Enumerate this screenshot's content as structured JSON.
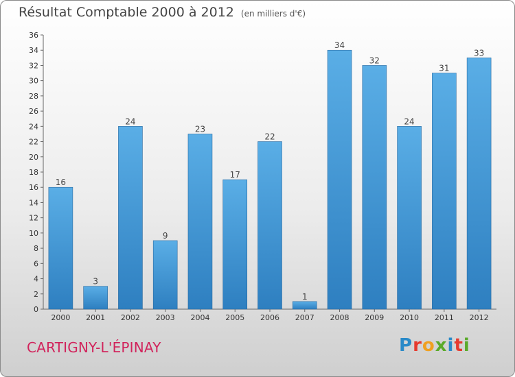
{
  "header": {
    "title": "Résultat Comptable 2000 à 2012",
    "subtitle": "(en milliers d'€)"
  },
  "footer": {
    "commune": "CARTIGNY-L'ÉPINAY",
    "logo_text": "Proxiti"
  },
  "colors": {
    "bar_light": "#5aaee6",
    "bar_dark": "#2e7fc0",
    "commune_text": "#d1245c",
    "logo_letters": [
      "#2a8ac8",
      "#e63a2e",
      "#f0a020",
      "#5aaa2a",
      "#2a8ac8",
      "#e63a2e",
      "#5aaa2a"
    ]
  },
  "chart_data": {
    "type": "bar",
    "title": "Résultat Comptable 2000 à 2012",
    "xlabel": "",
    "ylabel": "",
    "categories": [
      "2000",
      "2001",
      "2002",
      "2003",
      "2004",
      "2005",
      "2006",
      "2007",
      "2008",
      "2009",
      "2010",
      "2011",
      "2012"
    ],
    "values": [
      16,
      3,
      24,
      9,
      23,
      17,
      22,
      1,
      34,
      32,
      24,
      31,
      33
    ],
    "ylim": [
      0,
      36
    ],
    "yticks": [
      0,
      2,
      4,
      6,
      8,
      10,
      12,
      14,
      16,
      18,
      20,
      22,
      24,
      26,
      28,
      30,
      32,
      34,
      36
    ],
    "grid": false
  }
}
